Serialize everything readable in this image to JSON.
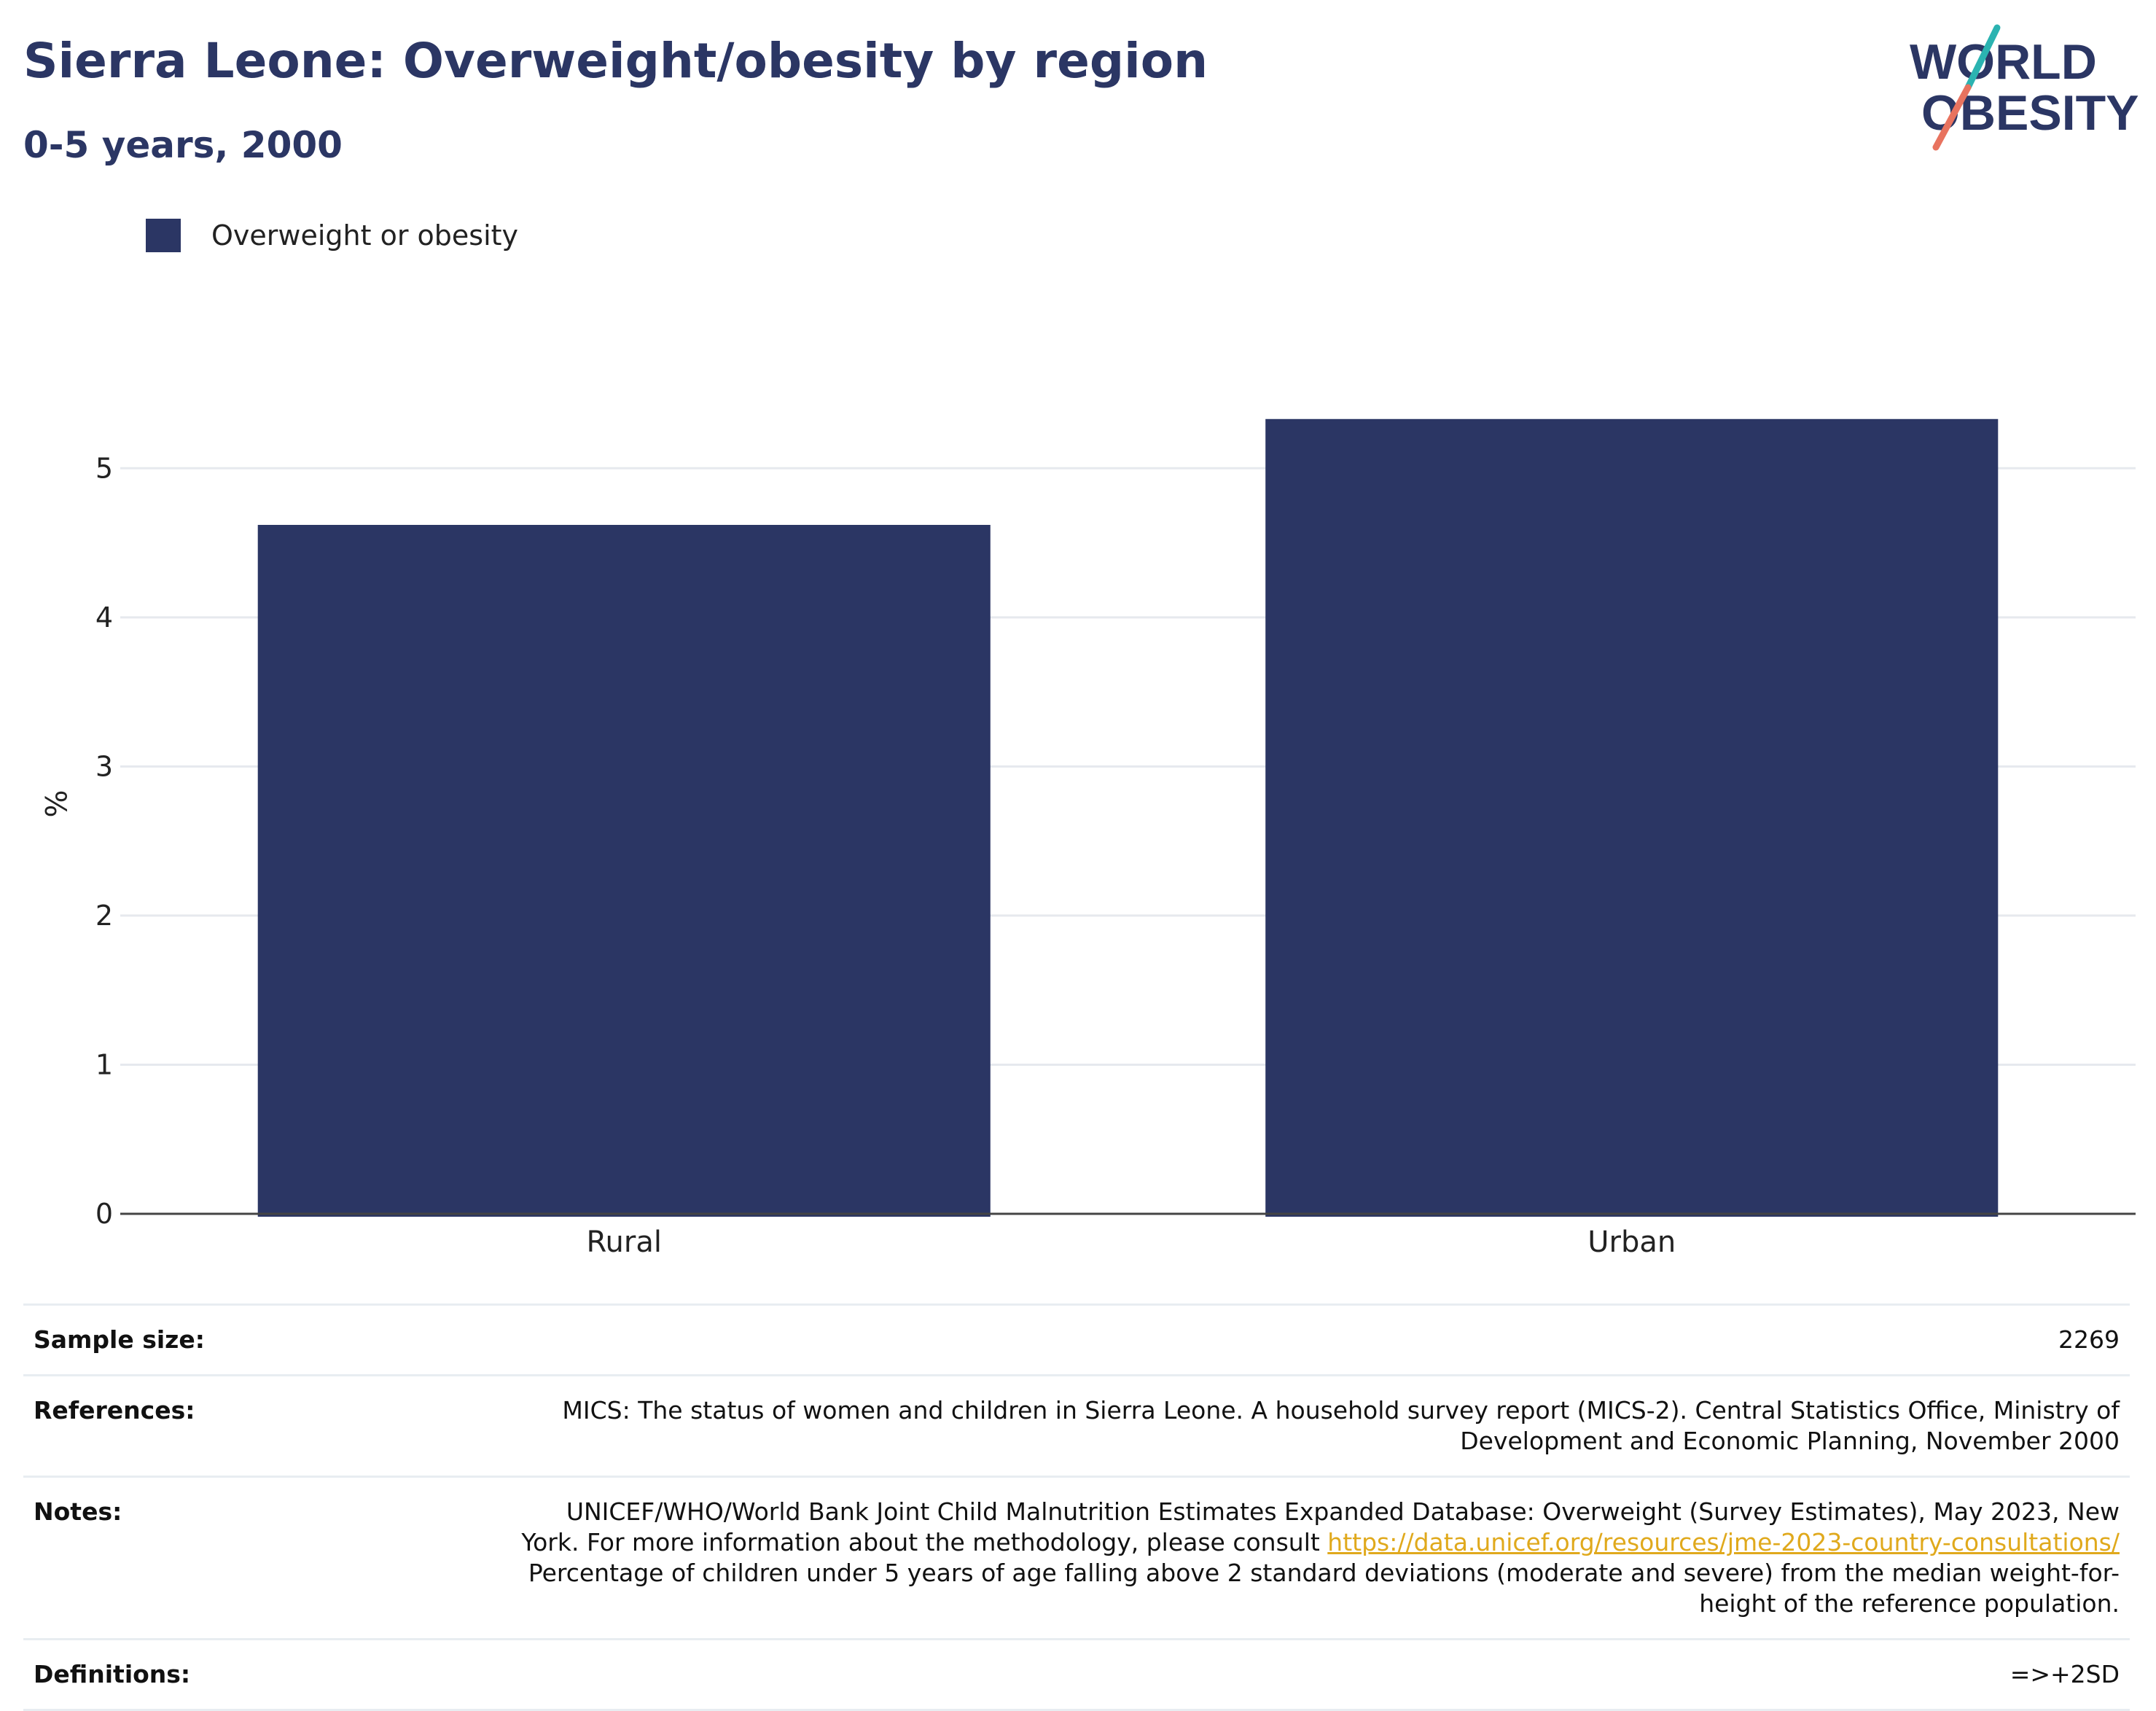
{
  "header": {
    "title": "Sierra Leone: Overweight/obesity by region",
    "subtitle": "0-5 years, 2000"
  },
  "logo": {
    "line1": "WORLD",
    "line2": "OBESITY",
    "text_color": "#2b3664",
    "accent_teal": "#2bb3b1",
    "accent_coral": "#e8735f"
  },
  "legend": {
    "label": "Overweight or obesity",
    "color": "#2b3664"
  },
  "chart_data": {
    "type": "bar",
    "categories": [
      "Rural",
      "Urban"
    ],
    "series": [
      {
        "name": "Overweight or obesity",
        "values": [
          4.62,
          5.33
        ]
      }
    ],
    "ylabel": "%",
    "ylim": [
      0,
      5.5
    ],
    "yticks": [
      0,
      1,
      2,
      3,
      4,
      5
    ],
    "grid": true,
    "legend_position": "top-left",
    "bar_color": "#2b3664"
  },
  "info": {
    "sample_size_label": "Sample size:",
    "sample_size_value": "2269",
    "references_label": "References:",
    "references_line1": "MICS: The status of women and children in Sierra Leone. A household survey report (MICS-2). Central Statistics Office, Ministry of",
    "references_line2": "Development and Economic Planning, November 2000",
    "notes_label": "Notes:",
    "notes_line1": "UNICEF/WHO/World Bank Joint Child Malnutrition Estimates Expanded Database: Overweight (Survey Estimates), May 2023, New",
    "notes_line2_prefix": "York. For more information about the methodology, please consult ",
    "notes_link": "https://data.unicef.org/resources/jme-2023-country-consultations/",
    "notes_line3": "Percentage of children under 5 years of age falling above 2 standard deviations (moderate and severe) from the median weight-for-",
    "notes_line4": "height of the reference population.",
    "definitions_label": "Definitions:",
    "definitions_value": "=>+2SD"
  }
}
